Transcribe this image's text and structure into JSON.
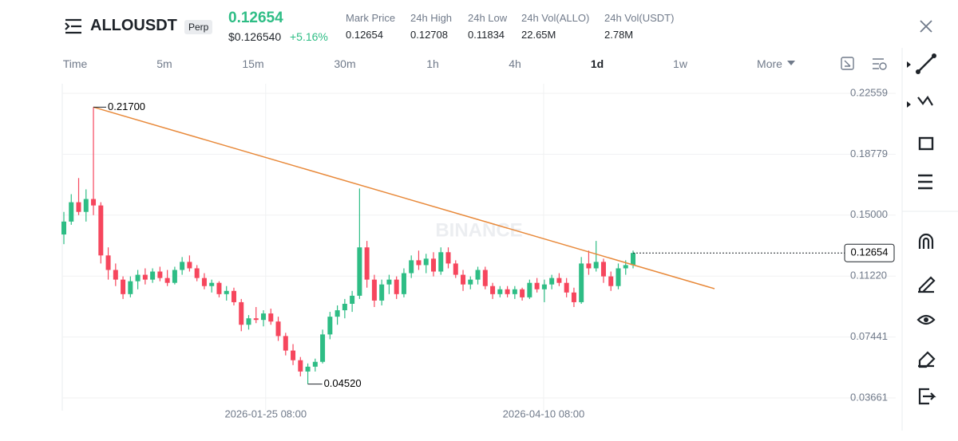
{
  "header": {
    "symbol": "ALLOUSDT",
    "badge": "Perp",
    "price": "0.12654",
    "usd_price": "$0.126540",
    "change": "+5.16%",
    "stats": [
      {
        "label": "Mark Price",
        "value": "0.12654"
      },
      {
        "label": "24h High",
        "value": "0.12708"
      },
      {
        "label": "24h Low",
        "value": "0.11834"
      },
      {
        "label": "24h Vol(ALLO)",
        "value": "22.65M"
      },
      {
        "label": "24h Vol(USDT)",
        "value": "2.78M"
      }
    ]
  },
  "tabs": [
    "Time",
    "5m",
    "15m",
    "30m",
    "1h",
    "4h",
    "1d",
    "1w",
    "More"
  ],
  "chart_data": {
    "type": "candlestick",
    "watermark": "BINANCE",
    "open": [
      0.138,
      0.146,
      0.158,
      0.152,
      0.16,
      0.156,
      0.125,
      0.116,
      0.11,
      0.101,
      0.109,
      0.113,
      0.11,
      0.115,
      0.111,
      0.108,
      0.116,
      0.121,
      0.117,
      0.111,
      0.106,
      0.108,
      0.101,
      0.103,
      0.096,
      0.082,
      0.086,
      0.085,
      0.089,
      0.084,
      0.075,
      0.066,
      0.06,
      0.053,
      0.056,
      0.059,
      0.076,
      0.087,
      0.091,
      0.095,
      0.1,
      0.13,
      0.11,
      0.097,
      0.107,
      0.11,
      0.101,
      0.114,
      0.122,
      0.119,
      0.123,
      0.115,
      0.127,
      0.12,
      0.113,
      0.107,
      0.11,
      0.116,
      0.106,
      0.101,
      0.104,
      0.101,
      0.104,
      0.099,
      0.108,
      0.104,
      0.107,
      0.111,
      0.108,
      0.102,
      0.096,
      0.12,
      0.117,
      0.121,
      0.112,
      0.106,
      0.117,
      0.119
    ],
    "high": [
      0.152,
      0.163,
      0.173,
      0.166,
      0.217,
      0.158,
      0.13,
      0.12,
      0.112,
      0.112,
      0.116,
      0.117,
      0.117,
      0.118,
      0.116,
      0.118,
      0.124,
      0.125,
      0.119,
      0.114,
      0.11,
      0.109,
      0.106,
      0.105,
      0.098,
      0.088,
      0.093,
      0.091,
      0.092,
      0.087,
      0.077,
      0.07,
      0.062,
      0.058,
      0.061,
      0.079,
      0.09,
      0.094,
      0.098,
      0.103,
      0.1665,
      0.134,
      0.113,
      0.11,
      0.113,
      0.112,
      0.117,
      0.125,
      0.128,
      0.126,
      0.127,
      0.13,
      0.13,
      0.122,
      0.116,
      0.112,
      0.118,
      0.118,
      0.108,
      0.106,
      0.106,
      0.106,
      0.105,
      0.11,
      0.111,
      0.11,
      0.113,
      0.114,
      0.111,
      0.105,
      0.124,
      0.128,
      0.134,
      0.123,
      0.115,
      0.12,
      0.122,
      0.128
    ],
    "low": [
      0.132,
      0.144,
      0.15,
      0.146,
      0.15,
      0.12,
      0.11,
      0.106,
      0.098,
      0.099,
      0.104,
      0.107,
      0.108,
      0.109,
      0.106,
      0.107,
      0.113,
      0.115,
      0.109,
      0.104,
      0.102,
      0.099,
      0.097,
      0.094,
      0.078,
      0.079,
      0.083,
      0.081,
      0.082,
      0.072,
      0.063,
      0.057,
      0.05,
      0.0452,
      0.053,
      0.058,
      0.073,
      0.082,
      0.086,
      0.09,
      0.098,
      0.105,
      0.093,
      0.094,
      0.101,
      0.098,
      0.099,
      0.111,
      0.116,
      0.114,
      0.112,
      0.113,
      0.117,
      0.111,
      0.103,
      0.104,
      0.107,
      0.104,
      0.098,
      0.099,
      0.099,
      0.098,
      0.097,
      0.098,
      0.102,
      0.096,
      0.104,
      0.106,
      0.099,
      0.093,
      0.095,
      0.113,
      0.115,
      0.108,
      0.103,
      0.104,
      0.113,
      0.117
    ],
    "close": [
      0.146,
      0.158,
      0.152,
      0.16,
      0.156,
      0.125,
      0.116,
      0.11,
      0.101,
      0.109,
      0.113,
      0.11,
      0.115,
      0.111,
      0.108,
      0.116,
      0.121,
      0.117,
      0.111,
      0.106,
      0.108,
      0.101,
      0.103,
      0.096,
      0.082,
      0.086,
      0.085,
      0.089,
      0.084,
      0.075,
      0.066,
      0.06,
      0.053,
      0.056,
      0.059,
      0.076,
      0.087,
      0.091,
      0.095,
      0.1,
      0.13,
      0.11,
      0.097,
      0.107,
      0.11,
      0.101,
      0.114,
      0.122,
      0.119,
      0.123,
      0.115,
      0.127,
      0.12,
      0.113,
      0.107,
      0.11,
      0.116,
      0.106,
      0.101,
      0.104,
      0.101,
      0.104,
      0.099,
      0.108,
      0.104,
      0.107,
      0.111,
      0.108,
      0.102,
      0.096,
      0.12,
      0.117,
      0.121,
      0.112,
      0.106,
      0.117,
      0.119,
      0.12654
    ],
    "up_color": "#2ebd85",
    "down_color": "#f6465d",
    "trend_color": "#e8893a",
    "high_label": {
      "value": 0.217,
      "label": "0.21700"
    },
    "low_label": {
      "value": 0.0452,
      "label": "0.04520"
    },
    "last_price": 0.12654,
    "ylim": [
      0.0287,
      0.2315
    ],
    "yticks": [
      0.22559,
      0.18779,
      {
        "value": 0.15,
        "label": "0.15000"
      },
      {
        "value": 0.1122,
        "label": "0.11220"
      },
      0.07441,
      0.03661
    ],
    "xlim": [
      0,
      77
    ],
    "xticks": [
      {
        "value": 27.3,
        "label": "2026-01-25 08:00"
      },
      {
        "value": 64.9,
        "label": "2026-04-10 08:00"
      }
    ],
    "grid": true
  }
}
